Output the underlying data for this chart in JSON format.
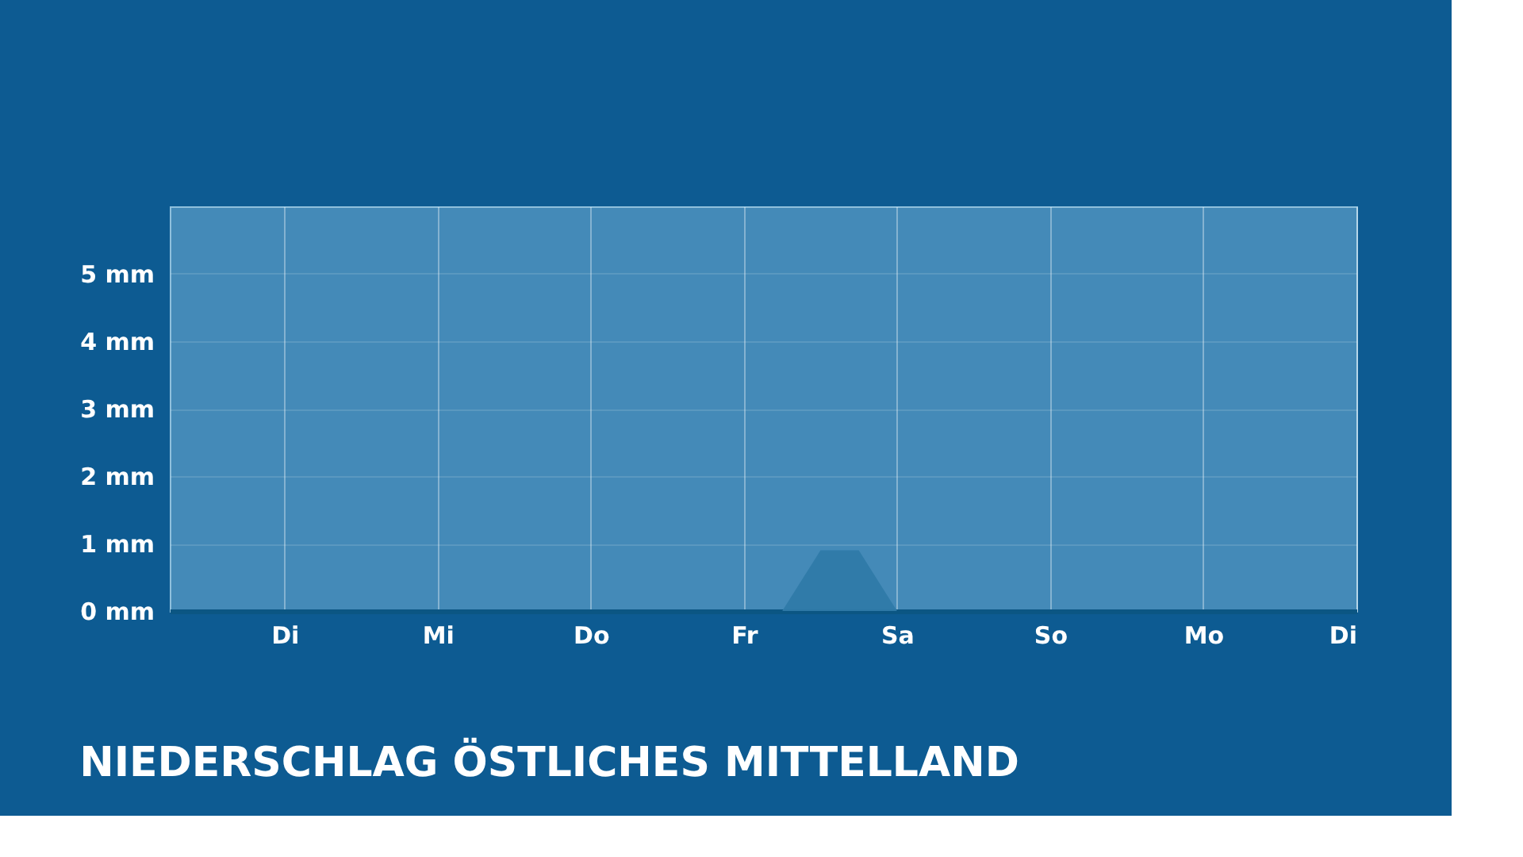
{
  "chart_data": {
    "type": "area",
    "title": "NIEDERSCHLAG ÖSTLICHES MITTELLAND",
    "categories": [
      null,
      null,
      null,
      "Di",
      null,
      null,
      null,
      "Mi",
      null,
      null,
      null,
      "Do",
      null,
      null,
      null,
      "Fr",
      null,
      null,
      null,
      "Sa",
      null,
      null,
      null,
      "So",
      null,
      null,
      null,
      "Mo",
      null,
      null,
      null,
      "Di"
    ],
    "values": [
      0,
      0,
      0,
      0,
      0,
      0,
      0,
      0,
      0,
      0,
      0,
      0,
      0,
      0,
      0,
      0,
      0,
      0.9,
      0.9,
      0,
      0,
      0,
      0,
      0,
      0,
      0,
      0,
      0,
      0,
      0,
      0,
      0
    ],
    "color": "#2f7aa8",
    "ylim": [
      0,
      6
    ],
    "yticks": [
      {
        "value": 0,
        "label": "0 mm"
      },
      {
        "value": 1,
        "label": "1 mm"
      },
      {
        "value": 2,
        "label": "2 mm"
      },
      {
        "value": 3,
        "label": "3 mm"
      },
      {
        "value": 4,
        "label": "4 mm"
      },
      {
        "value": 5,
        "label": "5 mm"
      }
    ],
    "grid": true
  }
}
